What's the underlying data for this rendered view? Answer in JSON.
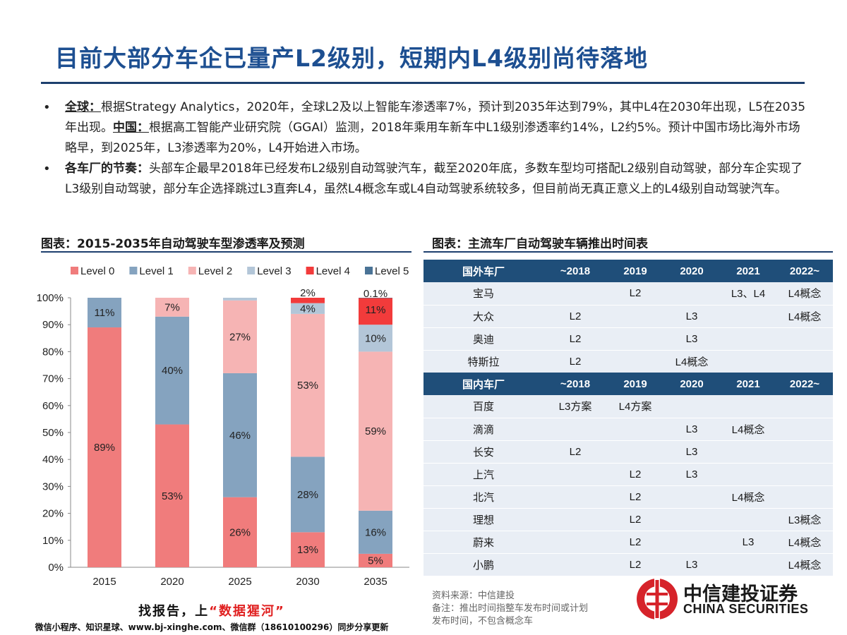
{
  "title": "目前大部分车企已量产L2级别，短期内L4级别尚待落地",
  "bullets": [
    {
      "lead": "全球：",
      "text": "根据Strategy Analytics，2020年，全球L2及以上智能车渗透率7%，预计到2035年达到79%，其中L4在2030年出现，L5在2035年出现。",
      "lead2": "中国：",
      "text2": "根据高工智能产业研究院（GGAI）监测，2018年乘用车新车中L1级别渗透率约14%，L2约5%。预计中国市场比海外市场略早，到2025年，L3渗透率为20%，L4开始进入市场。"
    },
    {
      "lead": "各车厂的节奏：",
      "text": "头部车企最早2018年已经发布L2级别自动驾驶汽车，截至2020年底，多数车型均可搭配L2级别自动驾驶，部分车企实现了L3级别自动驾驶，部分车企选择跳过L3直奔L4，虽然L4概念车或L4自动驾驶系统较多，但目前尚无真正意义上的L4级别自动驾驶汽车。"
    }
  ],
  "left_section_title": "图表：2015-2035年自动驾驶车型渗透率及预测",
  "right_section_title": "图表：主流车厂自动驾驶车辆推出时间表",
  "chart_data": {
    "type": "bar",
    "stacked": true,
    "categories": [
      "2015",
      "2020",
      "2025",
      "2030",
      "2035"
    ],
    "series": [
      {
        "name": "Level 0",
        "color": "#f07c7c",
        "values": [
          89,
          53,
          26,
          13,
          5
        ],
        "labels": [
          "89%",
          "53%",
          "26%",
          "13%",
          "5%"
        ]
      },
      {
        "name": "Level 1",
        "color": "#85a3bf",
        "values": [
          11,
          40,
          46,
          28,
          16
        ],
        "labels": [
          "11%",
          "40%",
          "46%",
          "28%",
          "16%"
        ]
      },
      {
        "name": "Level 2",
        "color": "#f6b4b4",
        "values": [
          0,
          7,
          27,
          53,
          59
        ],
        "labels": [
          "",
          "7%",
          "27%",
          "53%",
          "59%"
        ]
      },
      {
        "name": "Level 3",
        "color": "#b3c6d8",
        "values": [
          0,
          0,
          1,
          4,
          10
        ],
        "labels": [
          "",
          "",
          "",
          "4%",
          "10%"
        ]
      },
      {
        "name": "Level 4",
        "color": "#f23b3b",
        "values": [
          0,
          0,
          0,
          2,
          11
        ],
        "labels": [
          "",
          "",
          "",
          "2%",
          "11%"
        ]
      },
      {
        "name": "Level 5",
        "color": "#4a7396",
        "values": [
          0,
          0,
          0,
          0,
          0.1
        ],
        "labels": [
          "",
          "",
          "",
          "",
          "0.1%"
        ]
      }
    ],
    "yticks": [
      "0%",
      "10%",
      "20%",
      "30%",
      "40%",
      "50%",
      "60%",
      "70%",
      "80%",
      "90%",
      "100%"
    ],
    "ylim": [
      0,
      100
    ],
    "legend": "top",
    "grid": false
  },
  "table": {
    "overseas_header": [
      "国外车厂",
      "~2018",
      "2019",
      "2020",
      "2021",
      "2022~"
    ],
    "overseas_rows": [
      [
        "宝马",
        "",
        "L2",
        "",
        "L3、L4",
        "L4概念"
      ],
      [
        "大众",
        "L2",
        "",
        "L3",
        "",
        "L4概念"
      ],
      [
        "奥迪",
        "L2",
        "",
        "L3",
        "",
        ""
      ],
      [
        "特斯拉",
        "L2",
        "",
        "L4概念",
        "",
        ""
      ]
    ],
    "domestic_header": [
      "国内车厂",
      "~2018",
      "2019",
      "2020",
      "2021",
      "2022~"
    ],
    "domestic_rows": [
      [
        "百度",
        "L3方案",
        "L4方案",
        "",
        "",
        ""
      ],
      [
        "滴滴",
        "",
        "",
        "L3",
        "L4概念",
        ""
      ],
      [
        "长安",
        "L2",
        "",
        "L3",
        "",
        ""
      ],
      [
        "上汽",
        "",
        "L2",
        "L3",
        "",
        ""
      ],
      [
        "北汽",
        "",
        "L2",
        "",
        "L4概念",
        ""
      ],
      [
        "理想",
        "",
        "L2",
        "",
        "",
        "L3概念"
      ],
      [
        "蔚来",
        "",
        "L2",
        "",
        "L3",
        "L4概念"
      ],
      [
        "小鹏",
        "",
        "L2",
        "L3",
        "",
        "L4概念"
      ]
    ]
  },
  "notes": {
    "source": "资料来源：中信建投",
    "remark_line1": "备注：推出时间指整车发布时间或计划",
    "remark_line2": "发布时间，不包含概念车"
  },
  "logo": {
    "cn": "中信建投证券",
    "en": "CHINA SECURITIES"
  },
  "watermark": {
    "line1_prefix": "找报告，上",
    "line1_highlight": "“数据猩河”",
    "line2": "微信小程序、知识星球、www.bj-xinghe.com、微信群（18610100296）同步分享更新"
  },
  "colors": {
    "title": "#1d4f91",
    "table_header": "#1f4e79",
    "table_body": "#e9eef5",
    "logo_red": "#d6232a"
  }
}
